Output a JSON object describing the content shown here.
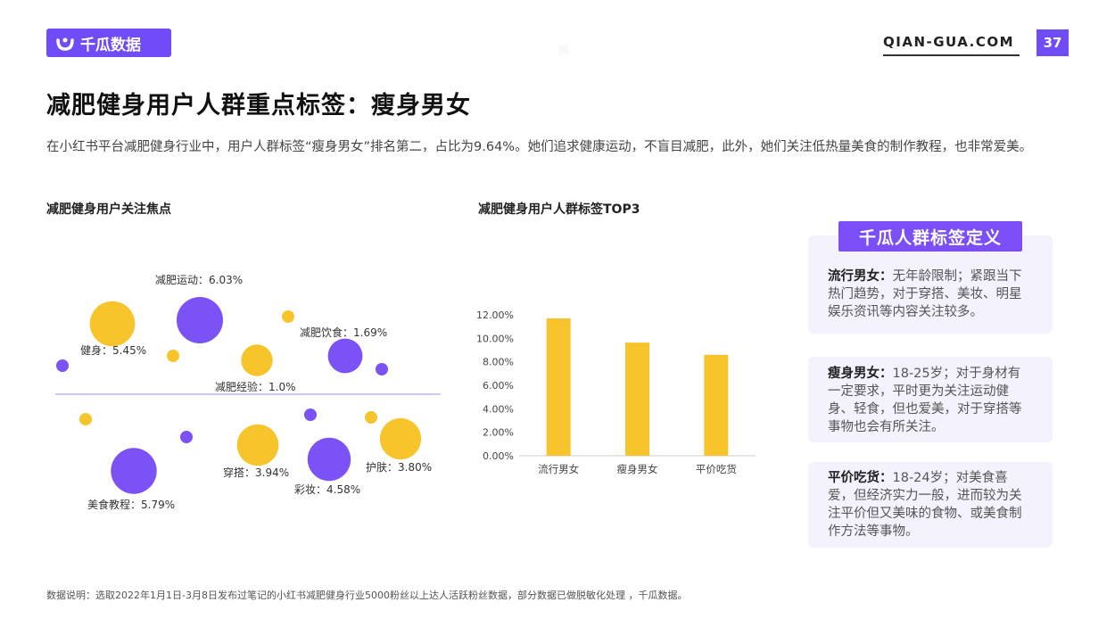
{
  "header": {
    "logo_text": "千瓜数据",
    "site": "QIAN-GUA.COM",
    "page_number": "37"
  },
  "title": "减肥健身用户人群重点标签：瘦身男女",
  "description": "在小红书平台减肥健身行业中，用户人群标签“瘦身男女”排名第二，占比为9.64%。她们追求健康运动，不盲目减肥，此外，她们关注低热量美食的制作教程，也非常爱美。",
  "bubble_section": {
    "title": "减肥健身用户关注焦点"
  },
  "bar_section": {
    "title": "减肥健身用户人群标签TOP3"
  },
  "definitions": {
    "title": "千瓜人群标签定义",
    "items": [
      {
        "label": "流行男女：",
        "text": "无年龄限制；紧跟当下热门趋势，对于穿搭、美妆、明星娱乐资讯等内容关注较多。"
      },
      {
        "label": "瘦身男女：",
        "text": "18-25岁；对于身材有一定要求，平时更为关注运动健身、轻食，但也爱美，对于穿搭等事物也会有所关注。"
      },
      {
        "label": "平价吃货：",
        "text": "18-24岁；对美食喜爱，但经济实力一般，进而较为关注平价但又美味的食物、或美食制作方法等事物。"
      }
    ]
  },
  "footer": "数据说明：选取2022年1月1日-3月8日发布过笔记的小红书减肥健身行业5000粉丝以上达人活跃粉丝数据，部分数据已做脱敏化处理 ，千瓜数据。",
  "colors": {
    "purple": "#7b52f5",
    "yellow": "#f7c52b",
    "bar": "#f7c52b",
    "axis_line": "#9b8cf0"
  },
  "chart_data": [
    {
      "type": "scatter",
      "title": "减肥健身用户关注焦点",
      "points": [
        {
          "label": "减肥运动：6.03%",
          "value": 6.03,
          "color": "purple"
        },
        {
          "label": "健身：5.45%",
          "value": 5.45,
          "color": "yellow"
        },
        {
          "label": "减肥饮食：1.69%",
          "value": 1.69,
          "color": "purple"
        },
        {
          "label": "减肥经验：1.0%",
          "value": 1.0,
          "color": "yellow"
        },
        {
          "label": "美食教程：5.79%",
          "value": 5.79,
          "color": "purple"
        },
        {
          "label": "穿搭：3.94%",
          "value": 3.94,
          "color": "yellow"
        },
        {
          "label": "彩妆：4.58%",
          "value": 4.58,
          "color": "purple"
        },
        {
          "label": "护肤：3.80%",
          "value": 3.8,
          "color": "yellow"
        }
      ]
    },
    {
      "type": "bar",
      "title": "减肥健身用户人群标签TOP3",
      "categories": [
        "流行男女",
        "瘦身男女",
        "平价吃货"
      ],
      "values": [
        11.7,
        9.64,
        8.6
      ],
      "yticks": [
        "0.00%",
        "2.00%",
        "4.00%",
        "6.00%",
        "8.00%",
        "10.00%",
        "12.00%"
      ],
      "ylim": [
        0,
        12
      ]
    }
  ]
}
